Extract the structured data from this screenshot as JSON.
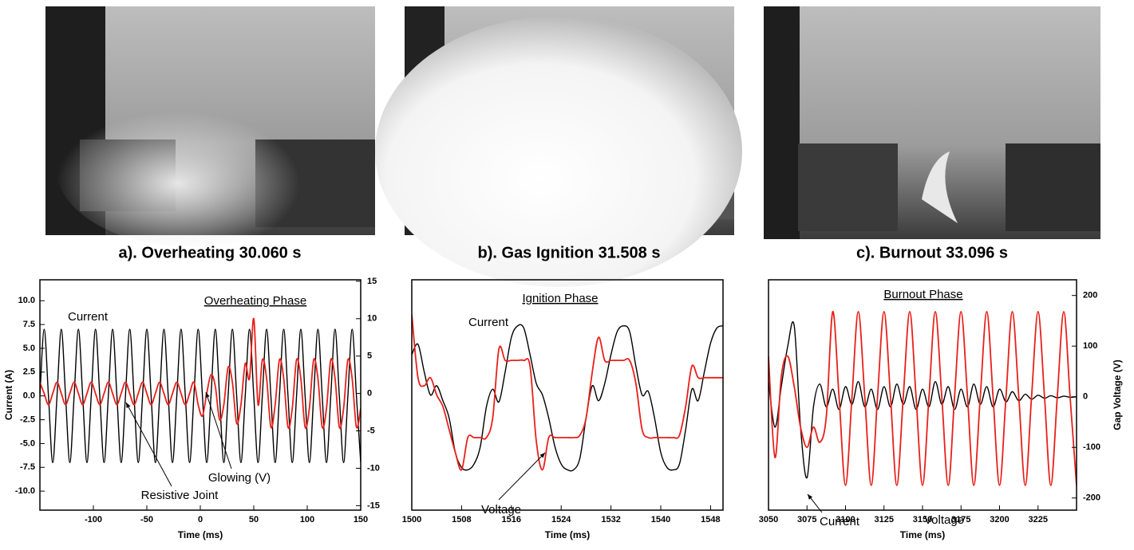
{
  "captions": [
    "a). Overheating 30.060 s",
    "b). Gas Ignition 31.508 s",
    "c). Burnout 33.096 s"
  ],
  "chart_data": [
    {
      "type": "line",
      "x_label": "Time (ms)",
      "y_label": "Current (A)",
      "annotations": [
        "Current",
        "Overheating Phase",
        "Glowing (V)",
        "Resistive Joint"
      ],
      "x": [
        -150,
        -146,
        -142,
        -138,
        -134,
        -130,
        -126,
        -122,
        -118,
        -114,
        -110,
        -106,
        -102,
        -98,
        -94,
        -90,
        -86,
        -82,
        -78,
        -74,
        -70,
        -66,
        -62,
        -58,
        -54,
        -50,
        -46,
        -42,
        -38,
        -34,
        -30,
        -26,
        -22,
        -18,
        -14,
        -10,
        -6,
        -2,
        2,
        6,
        10,
        14,
        18,
        22,
        26,
        30,
        34,
        38,
        42,
        46,
        50,
        54,
        58,
        62,
        66,
        70,
        74,
        78,
        82,
        86,
        90,
        94,
        98,
        102,
        106,
        110,
        114,
        118,
        122,
        126,
        130,
        134,
        138,
        142,
        146,
        150
      ],
      "xlim": [
        -150,
        150
      ],
      "xticks": [
        -100,
        -50,
        0,
        50,
        100,
        150
      ],
      "ylim": [
        -12,
        12.2
      ],
      "yticks": [
        {
          "value": -10,
          "label": "-10.0"
        },
        -7.5,
        {
          "value": -5,
          "label": "-5.0"
        },
        -2.5,
        {
          "value": 0,
          "label": "0.0"
        },
        2.5,
        {
          "value": 5,
          "label": "5.0"
        },
        7.5,
        {
          "value": 10,
          "label": "10.0"
        }
      ],
      "y2lim": [
        -15.6,
        15.2
      ],
      "y2ticks": [
        -15,
        -10,
        -5,
        0,
        5,
        10,
        15
      ],
      "series": [
        {
          "name": "Current",
          "color": "#000000",
          "values": [
            0,
            7,
            0,
            -7,
            0,
            7,
            0,
            -7,
            0,
            7,
            0,
            -7,
            0,
            7,
            0,
            -7,
            0,
            7,
            0,
            -7,
            0,
            7,
            0,
            -7,
            0,
            7,
            0,
            -7,
            0,
            7,
            0,
            -7,
            0,
            7,
            0,
            -7,
            0,
            7,
            0,
            -7,
            0,
            7,
            0,
            -7,
            0,
            7,
            0,
            -7,
            0,
            7,
            0,
            -7,
            0,
            7,
            0,
            -7,
            0,
            7,
            0,
            -7,
            0,
            7,
            0,
            -7,
            0,
            7,
            0,
            -7,
            0,
            7,
            0,
            -7,
            0,
            7,
            0,
            -7
          ]
        },
        {
          "name": "Glowing (V)",
          "color": "#e8201a",
          "axis": "y2",
          "values": [
            1.5,
            0,
            -1.5,
            0,
            1.5,
            0,
            -1.5,
            0,
            1.5,
            0,
            -1.5,
            0,
            1.5,
            0,
            -1.5,
            0,
            1.5,
            0,
            -1.5,
            0,
            1.5,
            0,
            -1.5,
            0,
            1.5,
            0,
            -1.5,
            0,
            1.5,
            0,
            -1.5,
            0,
            1.5,
            0,
            -1.5,
            0,
            1.5,
            -1.5,
            -3,
            0,
            2.5,
            1,
            -3.5,
            -1.5,
            3.5,
            1.5,
            -4,
            -1.5,
            4,
            2,
            10,
            -1.5,
            4.5,
            2,
            -4.5,
            -1.5,
            4.5,
            2,
            -4.5,
            -2,
            4.5,
            2,
            -4.5,
            -2,
            4.5,
            2,
            -4.5,
            -2,
            4.5,
            2,
            -4.5,
            -2,
            4.5,
            2,
            -4.5,
            -2
          ]
        }
      ]
    },
    {
      "type": "line",
      "x_label": "Time (ms)",
      "annotations": [
        "Current",
        "Ignition Phase",
        "Voltage"
      ],
      "x": [
        1500,
        1501,
        1502,
        1503,
        1504,
        1505,
        1506,
        1507,
        1508,
        1509,
        1510,
        1511,
        1512,
        1513,
        1514,
        1515,
        1516,
        1517,
        1518,
        1519,
        1520,
        1521,
        1522,
        1523,
        1524,
        1525,
        1526,
        1527,
        1528,
        1529,
        1530,
        1531,
        1532,
        1533,
        1534,
        1535,
        1536,
        1537,
        1538,
        1539,
        1540,
        1541,
        1542,
        1543,
        1544,
        1545,
        1546,
        1547,
        1548,
        1549,
        1550
      ],
      "xlim": [
        1500,
        1550
      ],
      "xticks": [
        1500,
        1508,
        1516,
        1524,
        1532,
        1540,
        1548
      ],
      "ylim": [
        -10,
        10
      ],
      "series": [
        {
          "name": "Current",
          "color": "#000000",
          "values": [
            3.5,
            4.4,
            2,
            0,
            0.8,
            -0.5,
            -2,
            -5,
            -6.3,
            -6.5,
            -6,
            -4.5,
            -1,
            0.5,
            -0.6,
            2,
            5,
            6,
            5.8,
            3.5,
            1,
            0,
            -2,
            -4.5,
            -6,
            -6.5,
            -6.5,
            -5.5,
            -2,
            0.8,
            -0.5,
            1,
            3.5,
            5.5,
            6,
            5.5,
            2.5,
            0,
            0.3,
            -2,
            -5,
            -6.3,
            -6.5,
            -6,
            -3,
            0.5,
            -0.5,
            2,
            4.5,
            5.8,
            6
          ]
        },
        {
          "name": "Voltage",
          "color": "#e8201a",
          "values": [
            7,
            1.5,
            0.8,
            1.5,
            0,
            -1,
            -3,
            -5,
            -6.5,
            -3.7,
            -3.7,
            -3.7,
            -3.7,
            -2,
            4,
            3,
            3,
            3,
            3,
            2.5,
            -4,
            -6.5,
            -3.7,
            -3.7,
            -3.7,
            -3.7,
            -3.7,
            -3.5,
            -2,
            2,
            5,
            3,
            3,
            3,
            3,
            3,
            1,
            -3,
            -3.7,
            -3.7,
            -3.7,
            -3.7,
            -3.7,
            -3.5,
            -1,
            2.5,
            1.5,
            1.5,
            1.5,
            1.5,
            1.5
          ]
        }
      ]
    },
    {
      "type": "line",
      "x_label": "Time (ms)",
      "y2_label": "Gap Voltage (V)",
      "annotations": [
        "Burnout Phase",
        "Current",
        "Voltage"
      ],
      "x": [
        3050,
        3054.2,
        3058.3,
        3062.5,
        3066.7,
        3070.8,
        3075,
        3079.2,
        3083.3,
        3087.5,
        3091.7,
        3095.8,
        3100,
        3104.2,
        3108.3,
        3112.5,
        3116.7,
        3120.8,
        3125,
        3129.2,
        3133.3,
        3137.5,
        3141.7,
        3145.8,
        3150,
        3154.2,
        3158.3,
        3162.5,
        3166.7,
        3170.8,
        3175,
        3179.2,
        3183.3,
        3187.5,
        3191.7,
        3195.8,
        3200,
        3204.2,
        3208.3,
        3212.5,
        3216.7,
        3220.8,
        3225,
        3229.2,
        3233.3,
        3237.5,
        3241.7,
        3245.8,
        3250
      ],
      "xlim": [
        3050,
        3250
      ],
      "xticks": [
        3050,
        3075,
        3100,
        3125,
        3150,
        3175,
        3200,
        3225
      ],
      "ylim": [
        -224,
        231
      ],
      "y2lim": [
        -224,
        231
      ],
      "y2ticks": [
        -200,
        -100,
        0,
        100,
        200
      ],
      "series": [
        {
          "name": "Current",
          "color": "#000000",
          "values": [
            30,
            -60,
            20,
            100,
            140,
            -60,
            -160,
            -20,
            25,
            -20,
            15,
            -25,
            20,
            -15,
            30,
            -20,
            15,
            -25,
            20,
            -20,
            25,
            -15,
            20,
            -25,
            15,
            -20,
            30,
            -15,
            20,
            -25,
            15,
            -20,
            25,
            -15,
            20,
            -20,
            15,
            -10,
            10,
            -8,
            5,
            -5,
            3,
            -3,
            2,
            -2,
            1,
            -1,
            0
          ]
        },
        {
          "name": "Voltage",
          "color": "#e8201a",
          "axis": "y2",
          "values": [
            80,
            -120,
            40,
            80,
            20,
            -60,
            -100,
            -60,
            -90,
            -40,
            168,
            0,
            -175,
            0,
            168,
            0,
            -175,
            0,
            168,
            0,
            -175,
            0,
            168,
            0,
            -175,
            0,
            168,
            0,
            -175,
            0,
            168,
            0,
            -175,
            0,
            168,
            0,
            -175,
            0,
            168,
            0,
            -175,
            0,
            168,
            0,
            -175,
            0,
            168,
            0,
            -175
          ]
        }
      ]
    }
  ]
}
